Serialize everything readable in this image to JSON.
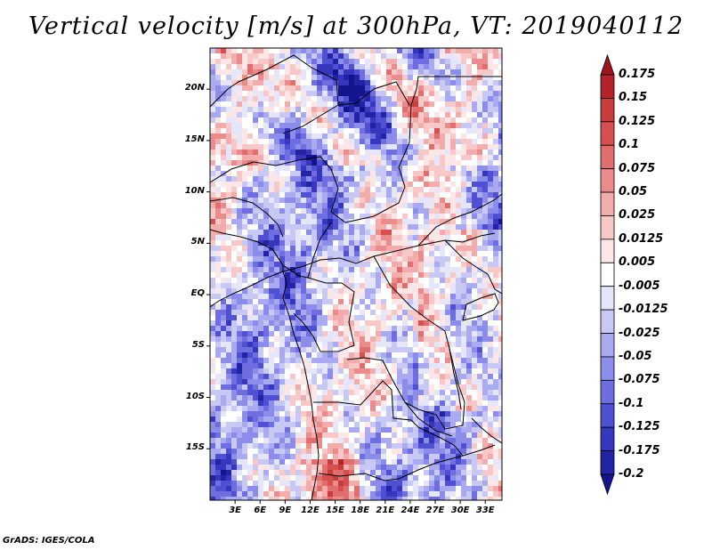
{
  "title": "Vertical velocity [m/s] at 300hPa, VT: 2019040112",
  "credit": "GrADS: IGES/COLA",
  "map": {
    "variable": "Vertical velocity",
    "units": "m/s",
    "level": "300hPa",
    "valid_time": "2019040112",
    "lon_range": [
      0,
      35
    ],
    "lat_range": [
      -20,
      24
    ],
    "lat_ticks": [
      {
        "value": 20,
        "label": "20N"
      },
      {
        "value": 15,
        "label": "15N"
      },
      {
        "value": 10,
        "label": "10N"
      },
      {
        "value": 5,
        "label": "5N"
      },
      {
        "value": 0,
        "label": "EQ"
      },
      {
        "value": -5,
        "label": "5S"
      },
      {
        "value": -10,
        "label": "10S"
      },
      {
        "value": -15,
        "label": "15S"
      }
    ],
    "lon_ticks": [
      {
        "value": 3,
        "label": "3E"
      },
      {
        "value": 6,
        "label": "6E"
      },
      {
        "value": 9,
        "label": "9E"
      },
      {
        "value": 12,
        "label": "12E"
      },
      {
        "value": 15,
        "label": "15E"
      },
      {
        "value": 18,
        "label": "18E"
      },
      {
        "value": 21,
        "label": "21E"
      },
      {
        "value": 24,
        "label": "24E"
      },
      {
        "value": 27,
        "label": "27E"
      },
      {
        "value": 30,
        "label": "30E"
      },
      {
        "value": 33,
        "label": "33E"
      }
    ]
  },
  "colorbar": {
    "labels": [
      "0.175",
      "0.15",
      "0.125",
      "0.1",
      "0.075",
      "0.05",
      "0.025",
      "0.0125",
      "0.005",
      "-0.005",
      "-0.0125",
      "-0.025",
      "-0.05",
      "-0.075",
      "-0.1",
      "-0.125",
      "-0.175",
      "-0.2"
    ],
    "colors": [
      "#a0141e",
      "#b4232a",
      "#c83c3c",
      "#d75050",
      "#e16e6e",
      "#ea8c8c",
      "#f3acac",
      "#f8c8c8",
      "#fce6e6",
      "#ffffff",
      "#e6e6fa",
      "#c8c8f5",
      "#aaaaf0",
      "#8c8ceb",
      "#6e6ee1",
      "#5050d2",
      "#3737be",
      "#2323a5",
      "#14148c"
    ]
  }
}
